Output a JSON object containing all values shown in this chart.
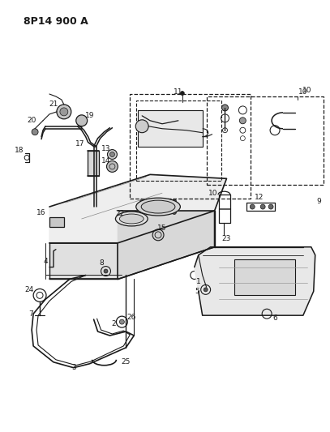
{
  "title": "8P14 900 A",
  "bg_color": "#ffffff",
  "line_color": "#1a1a1a",
  "title_fontsize": 9,
  "fig_width": 4.07,
  "fig_height": 5.33,
  "dpi": 100,
  "label_fontsize": 6.5
}
